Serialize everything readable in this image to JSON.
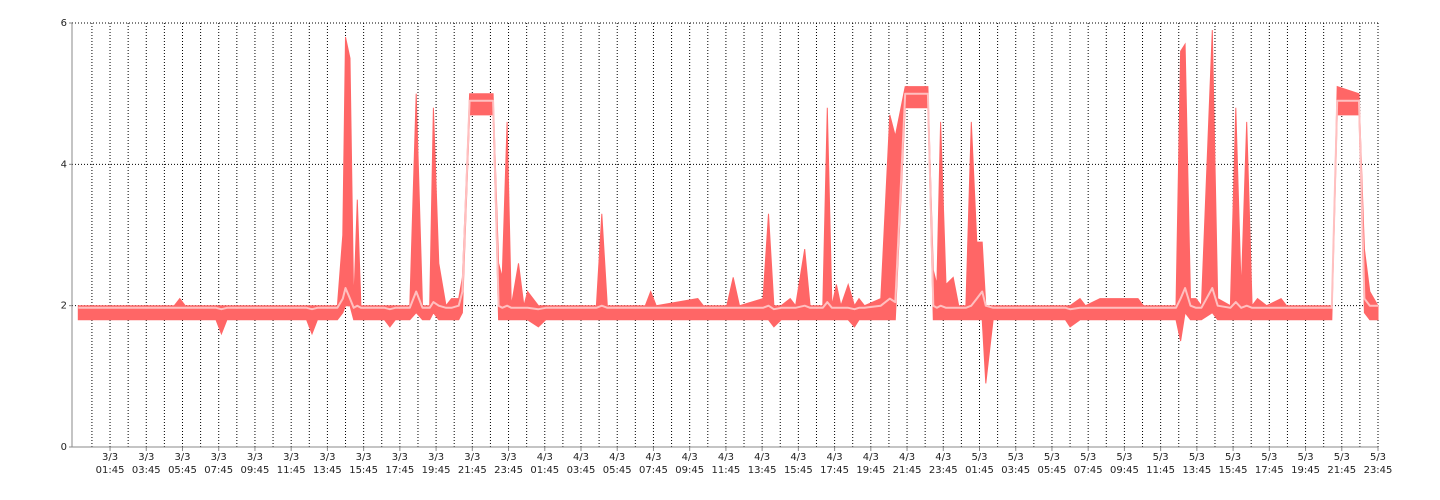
{
  "chart_data": {
    "type": "band-line",
    "x": [
      0,
      5.3,
      5.6,
      5.9,
      7.6,
      7.9,
      8.2,
      12.6,
      12.9,
      13.2,
      14.3,
      14.6,
      14.75,
      15,
      15.2,
      15.4,
      15.6,
      16.9,
      17.2,
      17.5,
      18.3,
      18.65,
      19,
      19.4,
      19.6,
      19.9,
      20.3,
      20.6,
      21,
      21.2,
      21.6,
      22.9,
      23.2,
      23.4,
      23.67,
      23.9,
      24.3,
      24.6,
      24.8,
      25.4,
      25.8,
      28.6,
      28.9,
      29.2,
      31.3,
      31.6,
      31.9,
      34.2,
      34.5,
      35.8,
      36.15,
      36.5,
      37.8,
      38.1,
      38.4,
      38.8,
      39.3,
      39.6,
      40.1,
      40.4,
      41.1,
      41.35,
      41.6,
      41.85,
      42.1,
      42.5,
      42.85,
      43.1,
      43.4,
      44.3,
      44.8,
      45.1,
      45.65,
      46.9,
      47.2,
      47.4,
      47.6,
      47.9,
      48.3,
      48.6,
      49,
      49.3,
      49.6,
      49.9,
      50.1,
      50.5,
      54.5,
      54.75,
      55.3,
      55.6,
      56.4,
      56.9,
      57.6,
      58.5,
      58.8,
      60.6,
      60.85,
      61.1,
      61.4,
      61.7,
      62,
      62.6,
      62.9,
      63.6,
      63.9,
      64.2,
      64.5,
      64.8,
      65.1,
      65.6,
      66.4,
      66.7,
      69.2,
      69.5,
      70.7,
      71,
      71.3,
      71.75
    ],
    "series": [
      {
        "color": "#ff6666",
        "values": [
          2,
          2,
          2.1,
          2,
          2,
          2,
          2,
          2,
          2,
          2,
          2,
          3,
          5.8,
          5.5,
          2,
          3.5,
          2,
          2,
          2,
          2,
          2,
          5,
          2,
          2,
          4.8,
          2.6,
          2,
          2.1,
          2.1,
          2.4,
          5,
          5,
          2.6,
          2.4,
          4.6,
          2,
          2.6,
          2,
          2.2,
          2,
          2,
          2,
          3.3,
          2,
          2,
          2.2,
          2,
          2.1,
          2,
          2,
          2.4,
          2,
          2.1,
          3.3,
          2,
          2,
          2.1,
          2,
          2.8,
          2,
          2,
          4.8,
          2,
          2.3,
          2,
          2.3,
          2,
          2.1,
          2,
          2.1,
          4.7,
          4.4,
          5.1,
          5.1,
          2.5,
          2.3,
          4.6,
          2.3,
          2.4,
          2,
          2,
          4.6,
          2.9,
          2.9,
          2,
          2,
          2,
          2,
          2.1,
          2,
          2.1,
          2.1,
          2.1,
          2.1,
          2,
          2,
          5.6,
          5.7,
          2.1,
          2.1,
          2,
          5.9,
          2.1,
          2,
          4.8,
          2.2,
          4.6,
          2,
          2.1,
          2,
          2.1,
          2,
          2,
          5.1,
          5,
          2.8,
          2.2,
          2
        ]
      },
      {
        "color": "#ff6666",
        "values": [
          1.8,
          1.8,
          1.8,
          1.8,
          1.8,
          1.6,
          1.8,
          1.8,
          1.6,
          1.8,
          1.8,
          1.9,
          2,
          2,
          1.8,
          1.8,
          1.8,
          1.8,
          1.7,
          1.8,
          1.8,
          1.9,
          1.8,
          1.8,
          1.9,
          1.8,
          1.8,
          1.8,
          1.8,
          1.9,
          4.7,
          4.7,
          1.8,
          1.8,
          1.8,
          1.8,
          1.8,
          1.8,
          1.8,
          1.7,
          1.8,
          1.8,
          1.8,
          1.8,
          1.8,
          1.8,
          1.8,
          1.8,
          1.8,
          1.8,
          1.8,
          1.8,
          1.8,
          1.8,
          1.7,
          1.8,
          1.8,
          1.8,
          1.8,
          1.8,
          1.8,
          1.8,
          1.8,
          1.8,
          1.8,
          1.8,
          1.7,
          1.8,
          1.8,
          1.8,
          1.8,
          1.8,
          4.8,
          4.8,
          1.8,
          1.8,
          1.8,
          1.8,
          1.8,
          1.8,
          1.8,
          1.8,
          1.8,
          1.8,
          0.9,
          1.8,
          1.8,
          1.7,
          1.8,
          1.8,
          1.8,
          1.8,
          1.8,
          1.8,
          1.8,
          1.8,
          1.5,
          1.9,
          1.8,
          1.8,
          1.8,
          1.9,
          1.8,
          1.8,
          1.8,
          1.8,
          1.8,
          1.8,
          1.8,
          1.8,
          1.8,
          1.8,
          1.8,
          4.7,
          4.7,
          1.9,
          1.8,
          1.8
        ]
      },
      {
        "color": "#ffc0c0",
        "values": [
          1.97,
          1.97,
          1.97,
          1.97,
          1.97,
          1.95,
          1.97,
          1.97,
          1.95,
          1.97,
          1.97,
          2.1,
          2.25,
          2.1,
          1.97,
          2,
          1.97,
          1.97,
          1.95,
          1.97,
          1.97,
          2.2,
          1.97,
          1.97,
          2.05,
          2,
          1.97,
          1.97,
          2,
          2.2,
          4.9,
          4.9,
          2,
          1.97,
          2,
          1.97,
          1.97,
          1.97,
          1.97,
          1.95,
          1.97,
          1.97,
          2,
          1.97,
          1.97,
          1.97,
          1.97,
          1.97,
          1.97,
          1.97,
          1.97,
          1.97,
          1.97,
          2,
          1.95,
          1.97,
          1.97,
          1.97,
          2,
          1.97,
          1.97,
          2.05,
          1.97,
          1.97,
          1.97,
          1.97,
          1.95,
          1.97,
          1.97,
          2,
          2.1,
          2.05,
          5,
          5,
          2,
          1.97,
          2,
          1.97,
          1.97,
          1.97,
          1.97,
          2,
          2.1,
          2.2,
          2,
          1.97,
          1.97,
          1.95,
          1.97,
          1.97,
          1.97,
          1.97,
          1.97,
          1.97,
          1.97,
          1.97,
          2.1,
          2.25,
          2,
          1.97,
          1.97,
          2.25,
          2,
          1.97,
          2.05,
          1.97,
          2,
          1.97,
          1.97,
          1.97,
          1.97,
          1.97,
          1.97,
          4.9,
          4.9,
          2.1,
          2,
          2
        ]
      }
    ],
    "xlim": [
      -0.35,
      71.75
    ],
    "xticks": [
      {
        "value": 1.75,
        "label": "3/3 01:45"
      },
      {
        "value": 3.75,
        "label": "3/3 03:45"
      },
      {
        "value": 5.75,
        "label": "3/3 05:45"
      },
      {
        "value": 7.75,
        "label": "3/3 07:45"
      },
      {
        "value": 9.75,
        "label": "3/3 09:45"
      },
      {
        "value": 11.75,
        "label": "3/3 11:45"
      },
      {
        "value": 13.75,
        "label": "3/3 13:45"
      },
      {
        "value": 15.75,
        "label": "3/3 15:45"
      },
      {
        "value": 17.75,
        "label": "3/3 17:45"
      },
      {
        "value": 19.75,
        "label": "3/3 19:45"
      },
      {
        "value": 21.75,
        "label": "3/3 21:45"
      },
      {
        "value": 23.75,
        "label": "3/3 23:45"
      },
      {
        "value": 25.75,
        "label": "4/3 01:45"
      },
      {
        "value": 27.75,
        "label": "4/3 03:45"
      },
      {
        "value": 29.75,
        "label": "4/3 05:45"
      },
      {
        "value": 31.75,
        "label": "4/3 07:45"
      },
      {
        "value": 33.75,
        "label": "4/3 09:45"
      },
      {
        "value": 35.75,
        "label": "4/3 11:45"
      },
      {
        "value": 37.75,
        "label": "4/3 13:45"
      },
      {
        "value": 39.75,
        "label": "4/3 15:45"
      },
      {
        "value": 41.75,
        "label": "4/3 17:45"
      },
      {
        "value": 43.75,
        "label": "4/3 19:45"
      },
      {
        "value": 45.75,
        "label": "4/3 21:45"
      },
      {
        "value": 47.75,
        "label": "4/3 23:45"
      },
      {
        "value": 49.75,
        "label": "5/3 01:45"
      },
      {
        "value": 51.75,
        "label": "5/3 03:45"
      },
      {
        "value": 53.75,
        "label": "5/3 05:45"
      },
      {
        "value": 55.75,
        "label": "5/3 07:45"
      },
      {
        "value": 57.75,
        "label": "5/3 09:45"
      },
      {
        "value": 59.75,
        "label": "5/3 11:45"
      },
      {
        "value": 61.75,
        "label": "5/3 13:45"
      },
      {
        "value": 63.75,
        "label": "5/3 15:45"
      },
      {
        "value": 65.75,
        "label": "5/3 17:45"
      },
      {
        "value": 67.75,
        "label": "5/3 19:45"
      },
      {
        "value": 69.75,
        "label": "5/3 21:45"
      },
      {
        "value": 71.75,
        "label": "5/3 23:45"
      }
    ],
    "ylim": [
      0,
      6
    ],
    "yticks": [
      0,
      2,
      4,
      6
    ],
    "grid": true
  }
}
